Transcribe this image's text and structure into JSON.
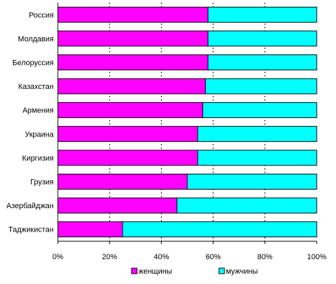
{
  "chart_data": {
    "type": "bar",
    "orientation": "horizontal",
    "stacked": "percent",
    "categories": [
      "Россия",
      "Молдавия",
      "Белоруссия",
      "Казахстан",
      "Армения",
      "Украина",
      "Киргизия",
      "Грузия",
      "Азербайджан",
      "Таджикистан"
    ],
    "series": [
      {
        "name": "женщины",
        "color": "#ff00ff",
        "values": [
          58,
          58,
          58,
          57,
          56,
          54,
          54,
          50,
          46,
          25
        ]
      },
      {
        "name": "мужчины",
        "color": "#00ffff",
        "values": [
          42,
          42,
          42,
          43,
          44,
          46,
          46,
          50,
          54,
          75
        ]
      }
    ],
    "xlim": [
      0,
      100
    ],
    "x_ticks": [
      "0%",
      "20%",
      "40%",
      "60%",
      "80%",
      "100%"
    ],
    "grid": "vertical dashed",
    "legend_position": "bottom"
  }
}
